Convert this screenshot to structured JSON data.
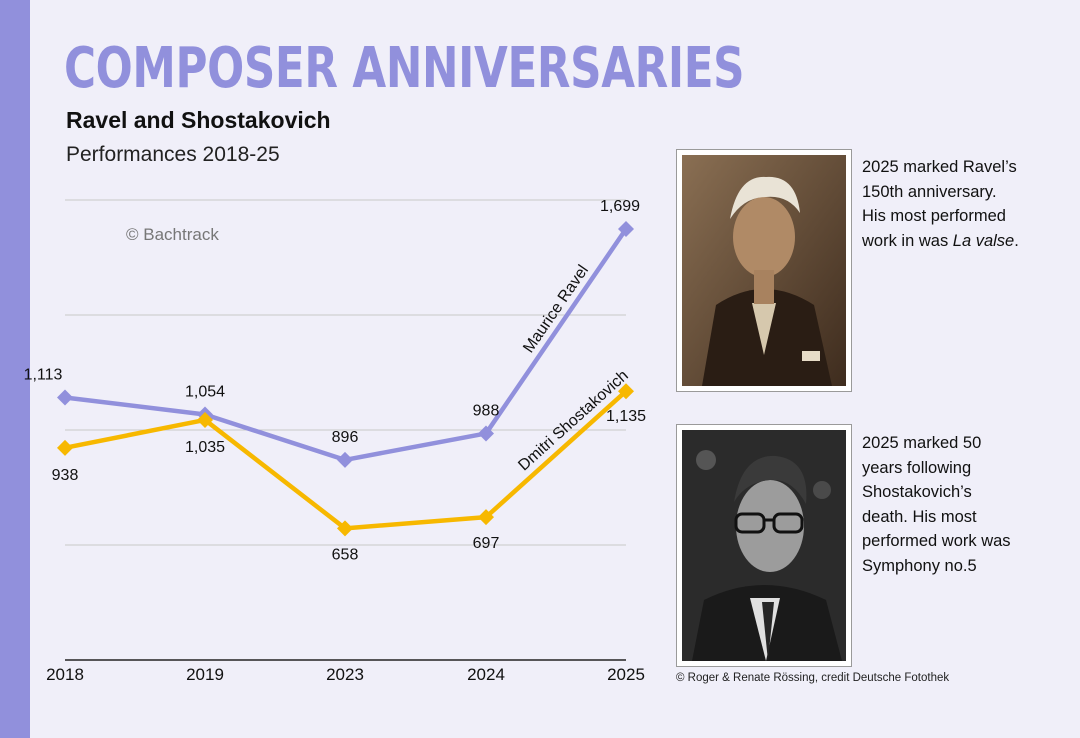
{
  "header": {
    "title": "COMPOSER ANNIVERSARIES",
    "subtitle": "Ravel and Shostakovich",
    "caption": "Performances 2018-25"
  },
  "watermark": "© Bachtrack",
  "chart_data": {
    "type": "line",
    "categories": [
      "2018",
      "2019",
      "2023",
      "2024",
      "2025"
    ],
    "series": [
      {
        "name": "Maurice Ravel",
        "values": [
          1113,
          1054,
          896,
          988,
          1699
        ],
        "labels": [
          "1,113",
          "1,054",
          "896",
          "988",
          "1,699"
        ],
        "color": "#9190dc"
      },
      {
        "name": "Dmitri Shostakovich",
        "values": [
          938,
          1035,
          658,
          697,
          1135
        ],
        "labels": [
          "938",
          "1,035",
          "658",
          "697",
          "1,135"
        ],
        "color": "#f7b800"
      }
    ],
    "ylim": [
      200,
      1800
    ],
    "grid": true
  },
  "notes": {
    "ravel_lines": [
      "2025 marked Ravel’s",
      "150th anniversary.",
      "His most performed"
    ],
    "ravel_prefix": "work in was ",
    "ravel_work": "La valse",
    "ravel_suffix": ".",
    "shostakovich_lines": [
      "2025 marked 50",
      "years following",
      "Shostakovich’s",
      "death. His most",
      "performed work was",
      "Symphony no.5"
    ]
  },
  "photo_credit": "© Roger & Renate Rössing, credit Deutsche Fotothek",
  "colors": {
    "accent": "#9190dc",
    "ravel": "#9190dc",
    "shostakovich": "#f7b800",
    "background": "#f0eff9"
  }
}
